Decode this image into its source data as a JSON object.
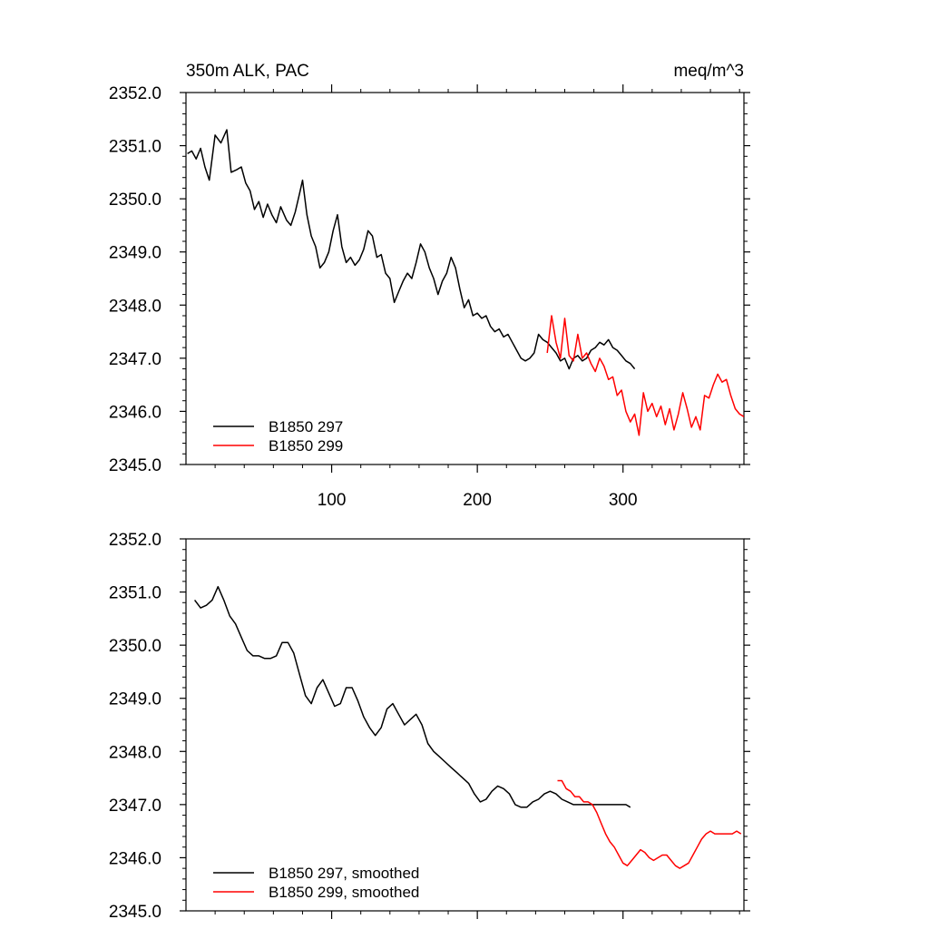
{
  "chart_data": [
    {
      "type": "line",
      "title": "350m ALK, PAC",
      "units": "meq/m^3",
      "xlim": [
        0,
        383
      ],
      "ylim": [
        2345.0,
        2352.0
      ],
      "x_ticks": [
        100,
        200,
        300
      ],
      "x_tick_labels": [
        "100",
        "200",
        "300"
      ],
      "y_ticks": [
        2345.0,
        2346.0,
        2347.0,
        2348.0,
        2349.0,
        2350.0,
        2351.0,
        2352.0
      ],
      "y_tick_labels": [
        "2345.0",
        "2346.0",
        "2347.0",
        "2348.0",
        "2349.0",
        "2350.0",
        "2351.0",
        "2352.0"
      ],
      "legend_position": "bottom-left",
      "series": [
        {
          "name": "B1850 297",
          "color": "#000000",
          "x": [
            1,
            4,
            7,
            10,
            13,
            16,
            20,
            24,
            28,
            31,
            35,
            38,
            41,
            44,
            47,
            50,
            53,
            56,
            59,
            62,
            65,
            69,
            72,
            75,
            78,
            80,
            83,
            86,
            89,
            92,
            95,
            98,
            101,
            104,
            107,
            110,
            113,
            116,
            119,
            122,
            125,
            128,
            131,
            134,
            137,
            140,
            143,
            146,
            149,
            152,
            155,
            158,
            161,
            164,
            167,
            170,
            173,
            176,
            179,
            182,
            185,
            188,
            191,
            194,
            197,
            200,
            203,
            206,
            209,
            212,
            215,
            218,
            221,
            224,
            227,
            230,
            233,
            236,
            239,
            242,
            245,
            248,
            251,
            254,
            257,
            260,
            263,
            266,
            269,
            272,
            275,
            278,
            281,
            284,
            287,
            290,
            293,
            296,
            299,
            302,
            305,
            308
          ],
          "y": [
            2350.85,
            2350.9,
            2350.75,
            2350.95,
            2350.6,
            2350.35,
            2351.2,
            2351.05,
            2351.3,
            2350.5,
            2350.55,
            2350.6,
            2350.3,
            2350.15,
            2349.8,
            2349.95,
            2349.65,
            2349.9,
            2349.7,
            2349.55,
            2349.85,
            2349.6,
            2349.5,
            2349.75,
            2350.1,
            2350.35,
            2349.7,
            2349.3,
            2349.1,
            2348.7,
            2348.8,
            2349.0,
            2349.4,
            2349.7,
            2349.1,
            2348.8,
            2348.9,
            2348.75,
            2348.85,
            2349.05,
            2349.4,
            2349.3,
            2348.9,
            2348.95,
            2348.6,
            2348.5,
            2348.05,
            2348.25,
            2348.45,
            2348.6,
            2348.5,
            2348.8,
            2349.15,
            2349.0,
            2348.7,
            2348.5,
            2348.2,
            2348.45,
            2348.6,
            2348.9,
            2348.7,
            2348.3,
            2347.95,
            2348.1,
            2347.8,
            2347.85,
            2347.75,
            2347.8,
            2347.6,
            2347.5,
            2347.55,
            2347.4,
            2347.45,
            2347.3,
            2347.15,
            2347.0,
            2346.95,
            2347.0,
            2347.1,
            2347.45,
            2347.35,
            2347.3,
            2347.2,
            2347.1,
            2346.95,
            2347.0,
            2346.8,
            2347.0,
            2347.05,
            2346.95,
            2347.0,
            2347.15,
            2347.2,
            2347.3,
            2347.25,
            2347.35,
            2347.2,
            2347.15,
            2347.05,
            2346.95,
            2346.9,
            2346.8
          ]
        },
        {
          "name": "B1850 299",
          "color": "#ff0000",
          "x": [
            248,
            251,
            254,
            257,
            260,
            263,
            266,
            269,
            272,
            275,
            278,
            281,
            284,
            287,
            290,
            293,
            296,
            299,
            302,
            305,
            308,
            311,
            314,
            317,
            320,
            323,
            326,
            329,
            332,
            335,
            338,
            341,
            344,
            347,
            350,
            353,
            356,
            359,
            362,
            365,
            368,
            371,
            374,
            377,
            380,
            383
          ],
          "y": [
            2347.1,
            2347.8,
            2347.3,
            2347.0,
            2347.75,
            2347.05,
            2346.95,
            2347.45,
            2347.0,
            2347.1,
            2346.9,
            2346.75,
            2347.0,
            2346.85,
            2346.6,
            2346.65,
            2346.3,
            2346.4,
            2346.0,
            2345.8,
            2345.95,
            2345.55,
            2346.35,
            2346.0,
            2346.15,
            2345.9,
            2346.1,
            2345.75,
            2346.05,
            2345.65,
            2345.95,
            2346.35,
            2346.05,
            2345.7,
            2345.9,
            2345.65,
            2346.3,
            2346.25,
            2346.5,
            2346.7,
            2346.55,
            2346.6,
            2346.3,
            2346.05,
            2345.95,
            2345.9
          ]
        }
      ]
    },
    {
      "type": "line",
      "xlim": [
        0,
        383
      ],
      "ylim": [
        2345.0,
        2352.0
      ],
      "x_ticks": [
        100,
        200,
        300
      ],
      "y_ticks": [
        2345.0,
        2346.0,
        2347.0,
        2348.0,
        2349.0,
        2350.0,
        2351.0,
        2352.0
      ],
      "y_tick_labels": [
        "2345.0",
        "2346.0",
        "2347.0",
        "2348.0",
        "2349.0",
        "2350.0",
        "2351.0",
        "2352.0"
      ],
      "legend_position": "bottom-left",
      "series": [
        {
          "name": "B1850 297, smoothed",
          "color": "#000000",
          "x": [
            6,
            10,
            14,
            18,
            22,
            26,
            30,
            34,
            38,
            42,
            46,
            50,
            54,
            58,
            62,
            66,
            70,
            74,
            78,
            82,
            86,
            90,
            94,
            98,
            102,
            106,
            110,
            114,
            118,
            122,
            126,
            130,
            134,
            138,
            142,
            146,
            150,
            154,
            158,
            162,
            166,
            170,
            174,
            178,
            182,
            186,
            190,
            194,
            198,
            202,
            206,
            210,
            214,
            218,
            222,
            226,
            230,
            234,
            238,
            242,
            246,
            250,
            254,
            258,
            262,
            266,
            270,
            274,
            278,
            282,
            286,
            290,
            294,
            298,
            302,
            305
          ],
          "y": [
            2350.85,
            2350.7,
            2350.75,
            2350.85,
            2351.1,
            2350.85,
            2350.55,
            2350.4,
            2350.15,
            2349.9,
            2349.8,
            2349.8,
            2349.75,
            2349.75,
            2349.8,
            2350.05,
            2350.05,
            2349.85,
            2349.45,
            2349.05,
            2348.9,
            2349.2,
            2349.35,
            2349.1,
            2348.85,
            2348.9,
            2349.2,
            2349.2,
            2348.95,
            2348.65,
            2348.45,
            2348.3,
            2348.45,
            2348.8,
            2348.9,
            2348.7,
            2348.5,
            2348.6,
            2348.7,
            2348.5,
            2348.15,
            2348.0,
            2347.9,
            2347.8,
            2347.7,
            2347.6,
            2347.5,
            2347.4,
            2347.2,
            2347.05,
            2347.1,
            2347.25,
            2347.35,
            2347.3,
            2347.2,
            2347.0,
            2346.95,
            2346.95,
            2347.05,
            2347.1,
            2347.2,
            2347.25,
            2347.2,
            2347.1,
            2347.05,
            2347.0,
            2347.0,
            2347.0,
            2347.0,
            2347.0,
            2347.0,
            2347.0,
            2347.0,
            2347.0,
            2347.0,
            2346.95
          ]
        },
        {
          "name": "B1850 299, smoothed",
          "color": "#ff0000",
          "x": [
            255,
            258,
            261,
            264,
            267,
            270,
            273,
            276,
            279,
            282,
            285,
            288,
            291,
            294,
            297,
            300,
            303,
            306,
            309,
            312,
            315,
            318,
            321,
            324,
            327,
            330,
            333,
            336,
            339,
            342,
            345,
            348,
            351,
            354,
            357,
            360,
            363,
            366,
            369,
            372,
            375,
            378,
            381
          ],
          "y": [
            2347.45,
            2347.45,
            2347.3,
            2347.25,
            2347.15,
            2347.15,
            2347.05,
            2347.05,
            2347.0,
            2346.85,
            2346.65,
            2346.45,
            2346.3,
            2346.2,
            2346.05,
            2345.9,
            2345.85,
            2345.95,
            2346.05,
            2346.15,
            2346.1,
            2346.0,
            2345.95,
            2346.0,
            2346.05,
            2346.05,
            2345.95,
            2345.85,
            2345.8,
            2345.85,
            2345.9,
            2346.05,
            2346.2,
            2346.35,
            2346.45,
            2346.5,
            2346.45,
            2346.45,
            2346.45,
            2346.45,
            2346.45,
            2346.5,
            2346.45
          ]
        }
      ]
    }
  ]
}
